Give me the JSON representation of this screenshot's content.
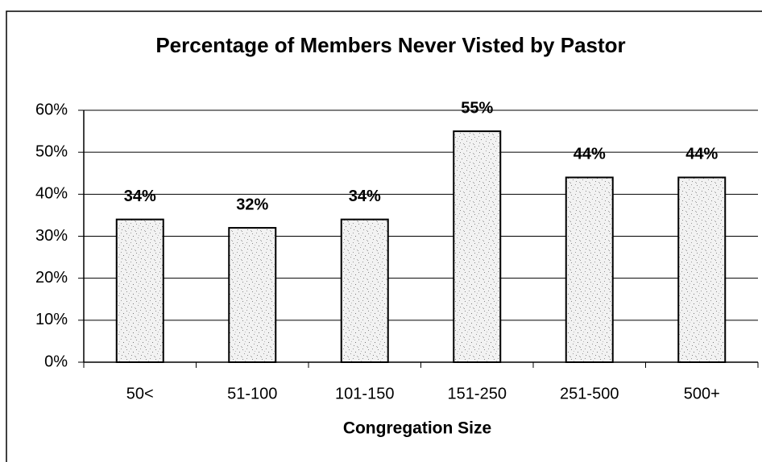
{
  "chart_data": {
    "type": "bar",
    "title": "Percentage of Members Never Visted by Pastor",
    "x_label": "Congregation Size",
    "categories": [
      "50<",
      "51-100",
      "101-150",
      "151-250",
      "251-500",
      "500+"
    ],
    "values": [
      34,
      32,
      34,
      55,
      44,
      44
    ],
    "value_labels": [
      "34%",
      "32%",
      "34%",
      "55%",
      "44%",
      "44%"
    ],
    "color": "#d9d9d9",
    "ylim": [
      0,
      60
    ],
    "yticks": [
      {
        "value": 0,
        "label": "0%"
      },
      {
        "value": 10,
        "label": "10%"
      },
      {
        "value": 20,
        "label": "20%"
      },
      {
        "value": 30,
        "label": "30%"
      },
      {
        "value": 40,
        "label": "40%"
      },
      {
        "value": 50,
        "label": "50%"
      },
      {
        "value": 60,
        "label": "60%"
      }
    ],
    "grid": true
  }
}
